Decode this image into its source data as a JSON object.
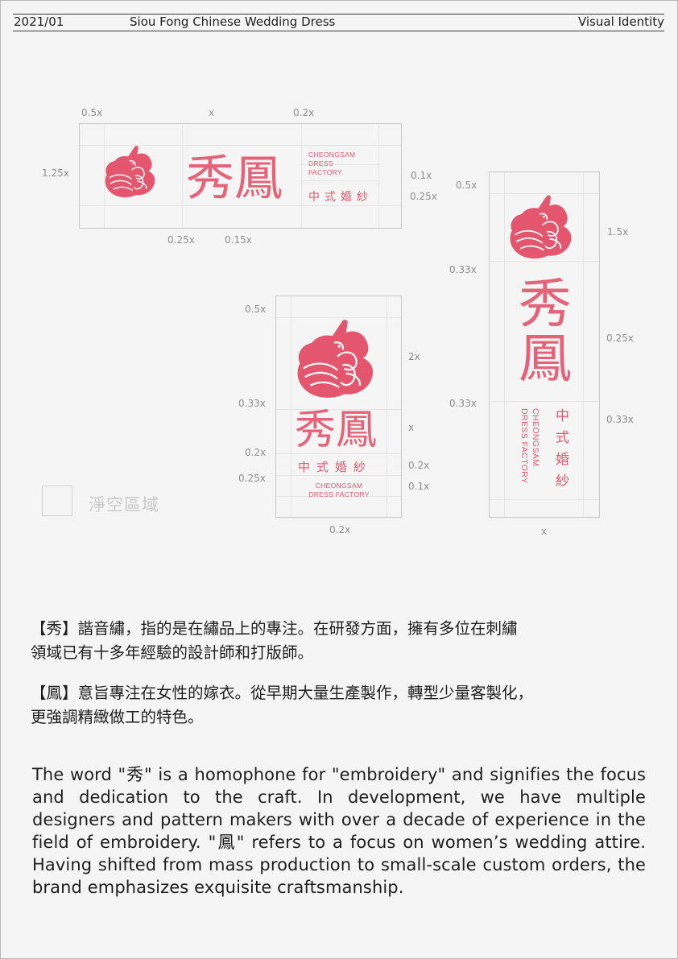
{
  "header": {
    "date": "2021/01",
    "title": "Siou Fong Chinese Wedding Dress",
    "section": "Visual Identity"
  },
  "brand": {
    "mark_name": "phoenix-logo",
    "hanzi": "秀鳳",
    "en_line1": "CHEONGSAM",
    "en_line2": "DRESS",
    "en_line3": "FACTORY",
    "en_line_combined": "DRESS FACTORY",
    "cn_sub": "中式婚紗",
    "color": "#e4566d"
  },
  "horizontal_logo": {
    "dims_top": [
      "0.5x",
      "x",
      "0.2x"
    ],
    "dim_left": "1.25x",
    "dims_right": [
      "0.1x",
      "0.25x"
    ],
    "dims_bottom": [
      "0.25x",
      "0.15x"
    ]
  },
  "stacked_logo": {
    "dim_top_left": "0.5x",
    "dim_right_a": "2x",
    "dim_left_a": "0.33x",
    "dim_right_b": "x",
    "dim_left_b": "0.2x",
    "dim_right_c": "0.2x",
    "dim_left_c": "0.25x",
    "dim_right_d": "0.1x",
    "dim_bottom": "0.2x"
  },
  "vertical_logo": {
    "dim_top_left": "0.5x",
    "dim_right_a": "1.5x",
    "dim_left_a": "0.33x",
    "dim_right_b": "0.25x",
    "dim_left_b": "0.33x",
    "dim_right_c": "0.33x",
    "dim_bottom": "x"
  },
  "legend": {
    "label": "淨空區域"
  },
  "body": {
    "zh_p1_line1": "【秀】諧音繡，指的是在繡品上的專注。在研發方面，擁有多位在刺繡",
    "zh_p1_line2": "領域已有十多年經驗的設計師和打版師。",
    "zh_p2_line1": "【鳳】意旨專注在女性的嫁衣。從早期大量生產製作，轉型少量客製化，",
    "zh_p2_line2": "更強調精緻做工的特色。",
    "en_paragraph": "The word \"秀\" is a homophone for \"embroidery\" and signifies the focus and dedication to the craft. In development, we have multiple designers and pattern makers with over a decade of experience in the field of embroidery. \"鳳\" refers to a focus on women’s wedding attire. Having shifted from mass production to small-scale custom orders, the brand emphasizes exquisite craftsmanship."
  }
}
